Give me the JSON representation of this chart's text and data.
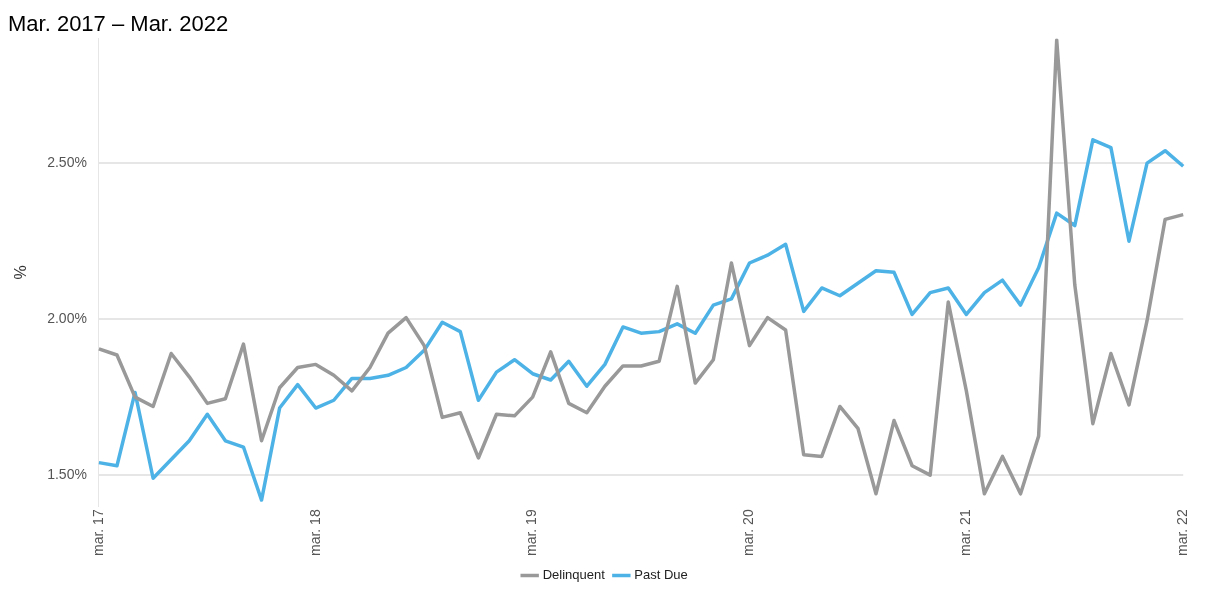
{
  "chart_data": {
    "type": "line",
    "title": "Mar. 2017 – Mar. 2022",
    "ylabel": "%",
    "categories": [
      "mar. 17",
      null,
      null,
      null,
      null,
      null,
      null,
      null,
      null,
      null,
      null,
      null,
      "mar. 18",
      null,
      null,
      null,
      null,
      null,
      null,
      null,
      null,
      null,
      null,
      null,
      "mar. 19",
      null,
      null,
      null,
      null,
      null,
      null,
      null,
      null,
      null,
      null,
      null,
      "mar. 20",
      null,
      null,
      null,
      null,
      null,
      null,
      null,
      null,
      null,
      null,
      null,
      "mar. 21",
      null,
      null,
      null,
      null,
      null,
      null,
      null,
      null,
      null,
      null,
      null,
      "mar. 22"
    ],
    "series": [
      {
        "name": "Delinquent",
        "color": "#999999",
        "values": [
          1.905,
          1.885,
          1.75,
          1.72,
          1.89,
          1.815,
          1.73,
          1.745,
          1.92,
          1.61,
          1.78,
          1.845,
          1.855,
          1.82,
          1.77,
          1.845,
          1.955,
          2.005,
          1.915,
          1.685,
          1.7,
          1.555,
          1.695,
          1.69,
          1.75,
          1.895,
          1.73,
          1.7,
          1.785,
          1.85,
          1.85,
          1.865,
          2.105,
          1.795,
          1.87,
          2.18,
          1.915,
          2.005,
          1.965,
          1.565,
          1.56,
          1.72,
          1.65,
          1.44,
          1.675,
          1.53,
          1.5,
          2.055,
          1.77,
          1.44,
          1.56,
          1.44,
          1.625,
          2.895,
          2.11,
          1.665,
          1.89,
          1.725,
          1.995,
          2.32,
          2.335
        ]
      },
      {
        "name": "Past Due",
        "color": "#4db3e6",
        "values": [
          1.54,
          1.53,
          1.765,
          1.49,
          1.55,
          1.61,
          1.695,
          1.61,
          1.59,
          1.42,
          1.715,
          1.79,
          1.715,
          1.74,
          1.81,
          1.81,
          1.82,
          1.845,
          1.9,
          1.99,
          1.96,
          1.74,
          1.83,
          1.87,
          1.825,
          1.805,
          1.865,
          1.785,
          1.855,
          1.975,
          1.955,
          1.96,
          1.985,
          1.955,
          2.045,
          2.065,
          2.18,
          2.205,
          2.24,
          2.025,
          2.1,
          2.075,
          2.115,
          2.155,
          2.15,
          2.015,
          2.085,
          2.1,
          2.015,
          2.085,
          2.125,
          2.045,
          2.165,
          2.34,
          2.3,
          2.575,
          2.55,
          2.25,
          2.5,
          2.54,
          2.49
        ]
      }
    ],
    "ylim": [
      1.4,
      2.9
    ],
    "yticks": [
      {
        "value": 1.5,
        "label": "1.50%"
      },
      {
        "value": 2,
        "label": "2.00%"
      },
      {
        "value": 2.5,
        "label": "2.50%"
      }
    ],
    "grid": "y",
    "legend": "bottom",
    "marker": "none",
    "line_style": "solid"
  }
}
